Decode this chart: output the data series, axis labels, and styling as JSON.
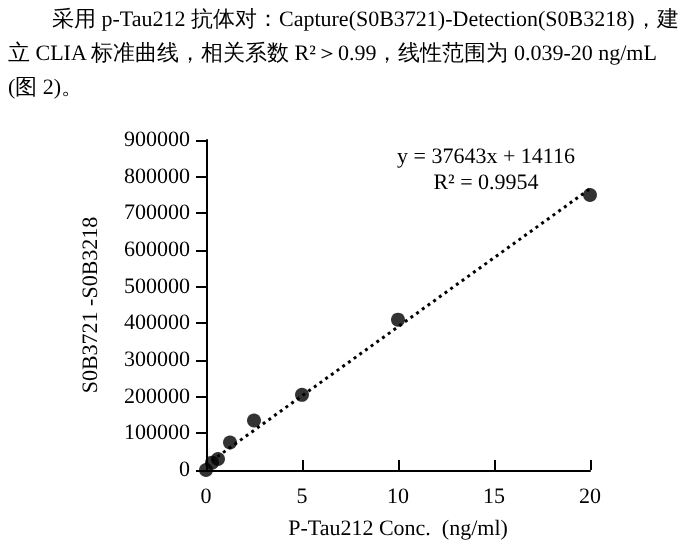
{
  "chart_data": {
    "type": "scatter",
    "title": "采用 p-Tau212 抗体对：Capture(S0B3721)-Detection(S0B3218)，建立 CLIA 标准曲线，相关系数 R²＞0.99，线性范围为 0.039-20 ng/mL (图 2)。",
    "xlabel": "P-Tau212 Conc.  (ng/ml)",
    "ylabel": "S0B3721 -S0B3218",
    "series": [
      {
        "color": "#000000",
        "marker": "circle",
        "x": [
          0,
          0.039,
          0.078,
          0.156,
          0.3125,
          0.625,
          1.25,
          2.5,
          5,
          10,
          20
        ],
        "values": [
          0,
          null,
          null,
          null,
          20000,
          30000,
          75000,
          135000,
          205000,
          410000,
          750000
        ]
      },
      {
        "type": "line",
        "color": "#000000",
        "marker": "none",
        "line_style": "dotted",
        "x": [
          0,
          20
        ],
        "values": [
          14000,
          767000
        ]
      }
    ],
    "annotations": [
      "y = 37643x + 14116",
      "R² = 0.9954"
    ],
    "xlim": [
      0,
      20
    ],
    "xticks": [
      0,
      5,
      10,
      15,
      20
    ],
    "ylim": [
      0,
      900000
    ],
    "yticks": [
      0,
      100000,
      200000,
      300000,
      400000,
      500000,
      600000,
      700000,
      800000,
      900000
    ],
    "grid": false
  }
}
